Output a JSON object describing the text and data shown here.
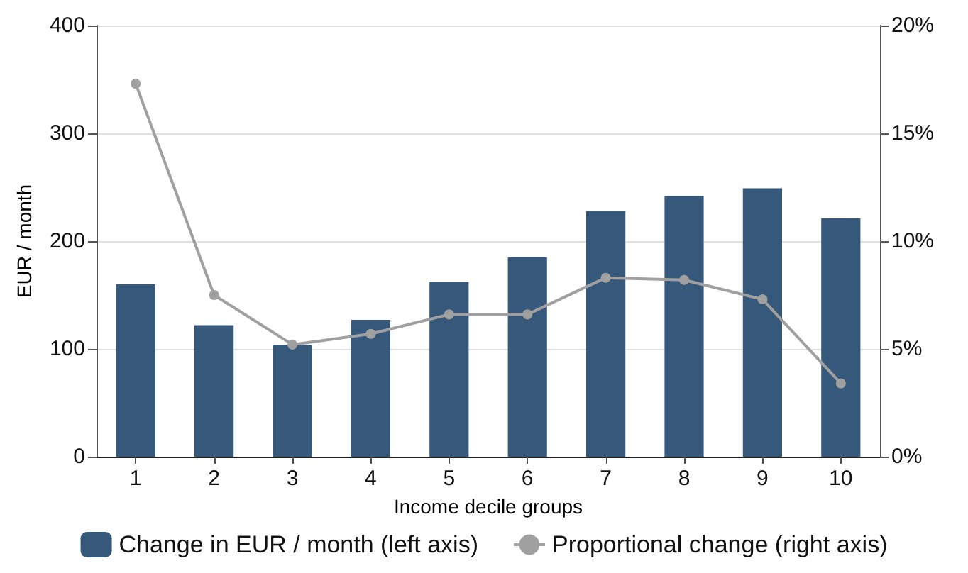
{
  "chart_data": {
    "type": "bar",
    "xlabel": "Income decile groups",
    "ylabel": "EUR / month",
    "categories": [
      "1",
      "2",
      "3",
      "4",
      "5",
      "6",
      "7",
      "8",
      "9",
      "10"
    ],
    "series": [
      {
        "name": "Change in EUR / month (left axis)",
        "color": "#36597b",
        "values": [
          160,
          122,
          104,
          127,
          162,
          185,
          228,
          242,
          249,
          221
        ]
      },
      {
        "name": "Proportional change (right axis)",
        "type": "line",
        "axis": "y2",
        "color": "#a0a0a0",
        "values": [
          17.3,
          7.5,
          5.2,
          5.7,
          6.6,
          6.6,
          8.3,
          8.2,
          7.3,
          3.4
        ]
      }
    ],
    "ylim": [
      0,
      400
    ],
    "yticks": [
      0,
      100,
      200,
      300,
      400
    ],
    "y2lim": [
      0,
      20
    ],
    "y2ticks": [
      {
        "value": 0,
        "label": "0%"
      },
      {
        "value": 5,
        "label": "5%"
      },
      {
        "value": 10,
        "label": "10%"
      },
      {
        "value": 15,
        "label": "15%"
      },
      {
        "value": 20,
        "label": "20%"
      }
    ],
    "grid": "y",
    "legend": "bottom",
    "marker": "circle",
    "line_style": "solid"
  }
}
